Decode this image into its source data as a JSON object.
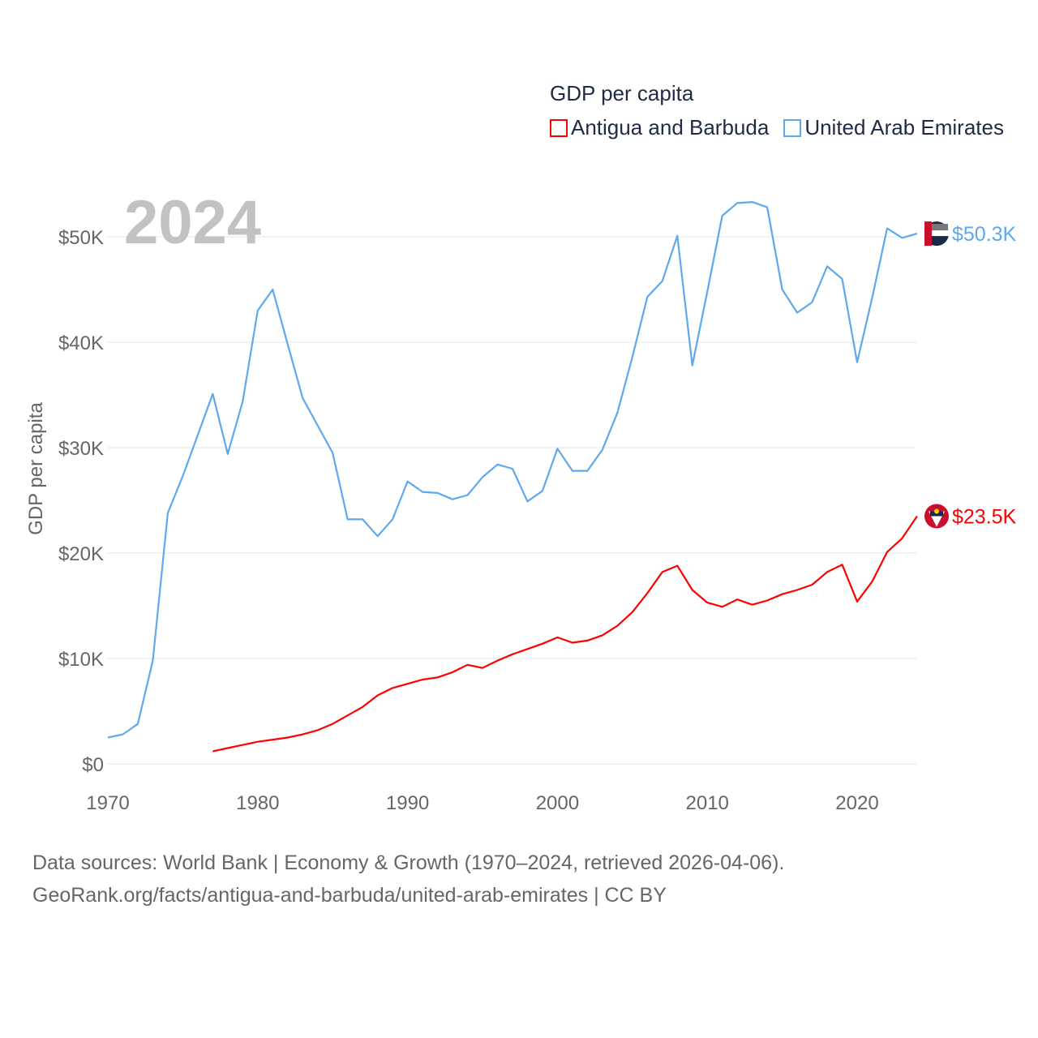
{
  "chart_data": {
    "type": "line",
    "title": "GDP per capita",
    "year_label": "2024",
    "xlabel": "",
    "ylabel": "GDP per capita",
    "xlim": [
      1970,
      2024
    ],
    "ylim": [
      0,
      55000
    ],
    "x_ticks": [
      1970,
      1980,
      1990,
      2000,
      2010,
      2020
    ],
    "y_ticks": [
      0,
      10000,
      20000,
      30000,
      40000,
      50000
    ],
    "y_tick_labels": [
      "$0",
      "$10K",
      "$20K",
      "$30K",
      "$40K",
      "$50K"
    ],
    "grid": true,
    "legend_position": "top-right",
    "series": [
      {
        "name": "Antigua and Barbuda",
        "color": "#ff0000",
        "end_label": "$23.5K",
        "start_year": 1977,
        "values": [
          1.2,
          1.5,
          1.8,
          2.1,
          2.3,
          2.5,
          2.8,
          3.2,
          3.8,
          4.6,
          5.4,
          6.5,
          7.2,
          7.6,
          8.0,
          8.2,
          8.7,
          9.4,
          9.1,
          9.8,
          10.4,
          10.9,
          11.4,
          12.0,
          11.5,
          11.7,
          12.2,
          13.1,
          14.4,
          16.2,
          18.2,
          18.8,
          16.5,
          15.3,
          14.9,
          15.6,
          15.1,
          15.5,
          16.1,
          16.5,
          17.0,
          18.2,
          18.9,
          15.4,
          17.3,
          20.1,
          21.4,
          23.5
        ]
      },
      {
        "name": "United Arab Emirates",
        "color": "#5fa8ee",
        "end_label": "$50.3K",
        "start_year": 1970,
        "values": [
          2.5,
          2.8,
          3.8,
          9.8,
          23.8,
          27.3,
          31.2,
          35.1,
          29.4,
          34.4,
          43.0,
          45.0,
          39.8,
          34.7,
          32.1,
          29.5,
          23.2,
          23.2,
          21.6,
          23.2,
          26.8,
          25.8,
          25.7,
          25.1,
          25.5,
          27.2,
          28.4,
          28.0,
          24.9,
          25.9,
          29.9,
          27.8,
          27.8,
          29.8,
          33.3,
          38.6,
          44.3,
          45.8,
          50.1,
          37.8,
          44.8,
          52.0,
          53.2,
          53.3,
          52.8,
          45.0,
          42.8,
          43.8,
          47.2,
          46.0,
          38.1,
          44.2,
          50.8,
          49.9,
          50.3
        ]
      }
    ],
    "value_unit": "thousand USD"
  },
  "footer": {
    "line1": "Data sources: World Bank | Economy & Growth (1970–2024, retrieved 2026-04-06).",
    "line2": "GeoRank.org/facts/antigua-and-barbuda/united-arab-emirates | CC BY"
  }
}
